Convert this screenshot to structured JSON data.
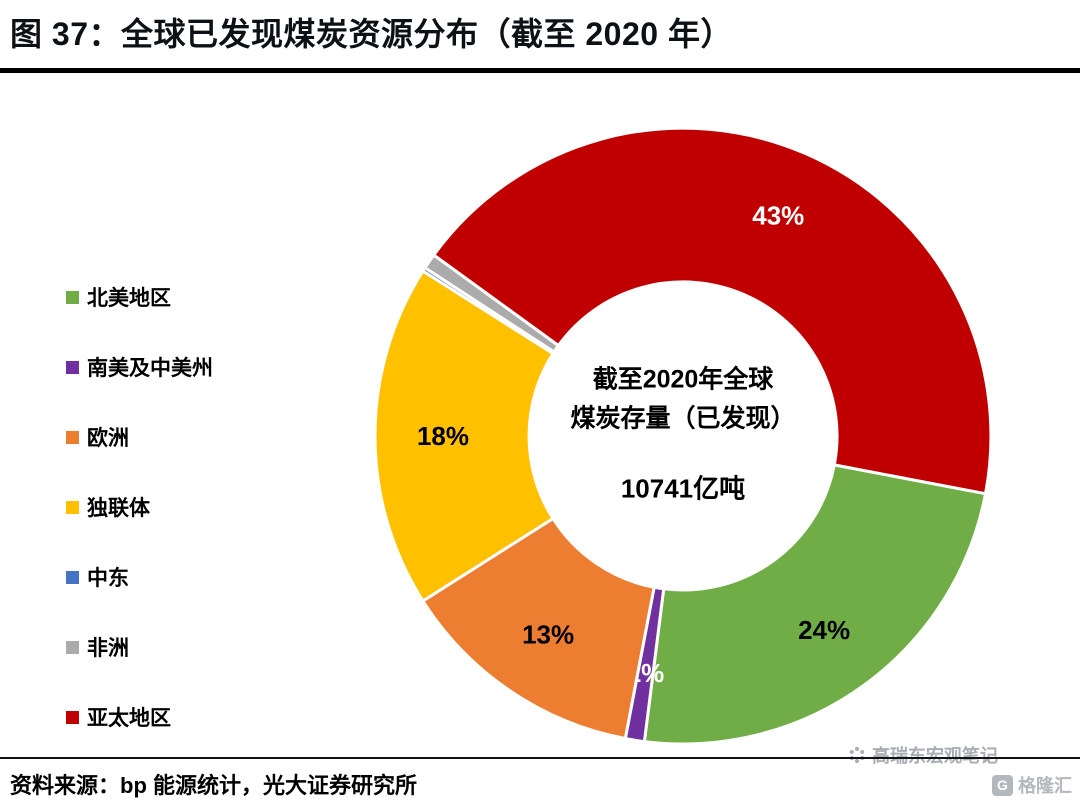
{
  "title": "图 37：全球已发现煤炭资源分布（截至 2020 年）",
  "footer": {
    "source": "资料来源：bp 能源统计，光大证券研究所"
  },
  "watermark": {
    "account": "高瑞东宏观笔记",
    "logo": "格隆汇"
  },
  "chart_data": {
    "type": "pie",
    "title": "全球已发现煤炭资源分布（截至 2020 年）",
    "donut": true,
    "inner_radius_ratio": 0.5,
    "rotation_deg": 100.8,
    "legend_position": "left",
    "center_label": {
      "line1": "截至2020年全球",
      "line2": "煤炭存量（已发现）",
      "value": "10741亿吨"
    },
    "segments": [
      {
        "name": "北美地区",
        "value": 24,
        "label": "24%",
        "color": "#70AD47",
        "label_color": "#000000"
      },
      {
        "name": "南美及中美州",
        "value": 1,
        "label": "1%",
        "color": "#7030A0",
        "label_color": "#FFFFFF"
      },
      {
        "name": "欧洲",
        "value": 13,
        "label": "13%",
        "color": "#ED7D31",
        "label_color": "#000000"
      },
      {
        "name": "独联体",
        "value": 18,
        "label": "18%",
        "color": "#FFC000",
        "label_color": "#000000"
      },
      {
        "name": "中东",
        "value": 0.2,
        "label": "",
        "color": "#4472C4",
        "label_color": "#000000"
      },
      {
        "name": "非洲",
        "value": 0.8,
        "label": "",
        "color": "#ABABAB",
        "label_color": "#000000"
      },
      {
        "name": "亚太地区",
        "value": 43,
        "label": "43%",
        "color": "#C00000",
        "label_color": "#FFFFFF"
      }
    ]
  }
}
